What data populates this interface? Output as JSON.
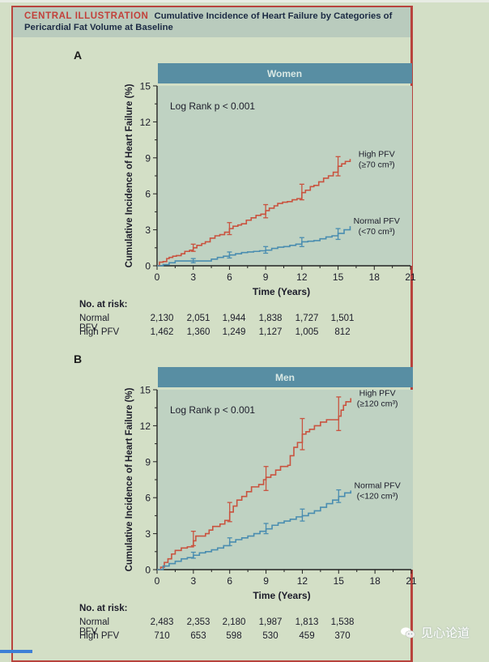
{
  "header": {
    "label": "CENTRAL ILLUSTRATION",
    "title": "Cumulative Incidence of Heart Failure by Categories of Pericardial Fat Volume at Baseline"
  },
  "colors": {
    "high_pfv": "#c9533f",
    "normal_pfv": "#4a8db0",
    "panel_header": "#588ea3",
    "plot_bg": "#bfd2c2",
    "frame": "#b8433d",
    "accent_label": "#c2403a"
  },
  "watermark": "见心论道",
  "chart_data": [
    {
      "panel": "A",
      "type": "line",
      "subtype": "kaplan-meier cumulative incidence",
      "title": "Women",
      "xlabel": "Time (Years)",
      "ylabel": "Cumulative Incidence of Heart Failure (%)",
      "xlim": [
        0,
        21
      ],
      "ylim": [
        0,
        15
      ],
      "xticks": [
        0,
        3,
        6,
        9,
        12,
        15,
        18,
        21
      ],
      "yticks": [
        0,
        3,
        6,
        9,
        12,
        15
      ],
      "annotation": "Log Rank p < 0.001",
      "series": [
        {
          "name": "High PFV",
          "label_line1": "High PFV",
          "label_line2": "(≥70 cm³)",
          "color": "#c9533f",
          "x": [
            0,
            0.2,
            0.5,
            0.8,
            1.0,
            1.3,
            1.6,
            2.0,
            2.3,
            2.7,
            3.0,
            3.3,
            3.7,
            4.0,
            4.4,
            4.8,
            5.2,
            5.6,
            6.0,
            6.3,
            6.7,
            7.0,
            7.4,
            7.8,
            8.2,
            8.6,
            9.0,
            9.3,
            9.7,
            10.0,
            10.4,
            10.8,
            11.2,
            11.6,
            12.0,
            12.3,
            12.7,
            13.0,
            13.4,
            13.8,
            14.2,
            14.6,
            15.0,
            15.3,
            15.6,
            16.0
          ],
          "y": [
            0,
            0.3,
            0.35,
            0.6,
            0.7,
            0.8,
            0.85,
            1.0,
            1.2,
            1.3,
            1.5,
            1.7,
            1.85,
            2.0,
            2.3,
            2.5,
            2.6,
            2.8,
            3.1,
            3.3,
            3.4,
            3.5,
            3.8,
            4.0,
            4.2,
            4.3,
            4.6,
            4.8,
            5.0,
            5.2,
            5.3,
            5.35,
            5.5,
            5.6,
            6.1,
            6.3,
            6.6,
            6.7,
            7.0,
            7.3,
            7.5,
            7.8,
            8.3,
            8.5,
            8.7,
            8.9
          ],
          "ci_at": [
            {
              "x": 3,
              "y": 1.5,
              "lo": 1.2,
              "hi": 1.8
            },
            {
              "x": 6,
              "y": 3.1,
              "lo": 2.6,
              "hi": 3.6
            },
            {
              "x": 9,
              "y": 4.6,
              "lo": 4.0,
              "hi": 5.1
            },
            {
              "x": 12,
              "y": 6.1,
              "lo": 5.5,
              "hi": 6.8
            },
            {
              "x": 15,
              "y": 8.3,
              "lo": 7.5,
              "hi": 9.1
            }
          ],
          "at_risk": [
            "1,462",
            "1,360",
            "1,249",
            "1,127",
            "1,005",
            "812"
          ]
        },
        {
          "name": "Normal PFV",
          "label_line1": "Normal PFV",
          "label_line2": "(<70 cm³)",
          "color": "#4a8db0",
          "x": [
            0,
            0.5,
            1.0,
            1.5,
            2.0,
            3.0,
            4.0,
            4.5,
            5.0,
            5.5,
            6.0,
            6.5,
            7.0,
            7.5,
            8.0,
            8.5,
            9.0,
            9.5,
            10.0,
            10.5,
            11.0,
            11.5,
            12.0,
            12.5,
            13.0,
            13.5,
            14.0,
            14.5,
            15.0,
            15.5,
            16.0
          ],
          "y": [
            0,
            0.1,
            0.25,
            0.4,
            0.4,
            0.4,
            0.4,
            0.55,
            0.7,
            0.8,
            0.9,
            1.0,
            1.1,
            1.15,
            1.2,
            1.25,
            1.3,
            1.45,
            1.55,
            1.6,
            1.7,
            1.8,
            2.0,
            2.05,
            2.1,
            2.25,
            2.4,
            2.5,
            2.7,
            3.0,
            3.3
          ],
          "ci_at": [
            {
              "x": 3,
              "y": 0.4,
              "lo": 0.25,
              "hi": 0.6
            },
            {
              "x": 6,
              "y": 0.9,
              "lo": 0.65,
              "hi": 1.15
            },
            {
              "x": 9,
              "y": 1.3,
              "lo": 1.05,
              "hi": 1.6
            },
            {
              "x": 12,
              "y": 2.0,
              "lo": 1.6,
              "hi": 2.35
            },
            {
              "x": 15,
              "y": 2.7,
              "lo": 2.2,
              "hi": 3.1
            }
          ],
          "at_risk": [
            "2,130",
            "2,051",
            "1,944",
            "1,838",
            "1,727",
            "1,501"
          ]
        }
      ],
      "risk_table": {
        "header": "No. at risk:",
        "times": [
          0,
          3,
          6,
          9,
          12,
          15
        ]
      }
    },
    {
      "panel": "B",
      "type": "line",
      "subtype": "kaplan-meier cumulative incidence",
      "title": "Men",
      "xlabel": "Time (Years)",
      "ylabel": "Cumulative Incidence of Heart Failure (%)",
      "xlim": [
        0,
        21
      ],
      "ylim": [
        0,
        15
      ],
      "xticks": [
        0,
        3,
        6,
        9,
        12,
        15,
        18,
        21
      ],
      "yticks": [
        0,
        3,
        6,
        9,
        12,
        15
      ],
      "annotation": "Log Rank p < 0.001",
      "series": [
        {
          "name": "High PFV",
          "label_line1": "High PFV",
          "label_line2": "(≥120 cm³)",
          "color": "#c9533f",
          "x": [
            0,
            0.3,
            0.6,
            0.9,
            1.2,
            1.5,
            2.0,
            2.5,
            3.0,
            3.2,
            4.0,
            4.3,
            4.6,
            5.2,
            5.6,
            6.0,
            6.3,
            6.6,
            7.0,
            7.4,
            7.8,
            8.4,
            8.8,
            9.0,
            9.4,
            9.8,
            10.2,
            10.8,
            11.0,
            11.3,
            11.6,
            12.0,
            12.3,
            12.6,
            13.0,
            13.5,
            14.0,
            14.5,
            15.0,
            15.2,
            15.4,
            15.6,
            16.0
          ],
          "y": [
            0,
            0.2,
            0.6,
            0.9,
            1.3,
            1.6,
            1.8,
            1.9,
            2.4,
            2.8,
            3.0,
            3.3,
            3.6,
            3.8,
            4.1,
            4.8,
            5.3,
            5.8,
            6.1,
            6.5,
            6.9,
            7.1,
            7.5,
            7.7,
            7.9,
            8.3,
            8.6,
            8.7,
            9.5,
            10.2,
            10.6,
            11.3,
            11.5,
            11.7,
            12.0,
            12.3,
            12.5,
            12.5,
            12.8,
            13.3,
            13.7,
            14.0,
            14.3
          ],
          "ci_at": [
            {
              "x": 3,
              "y": 2.4,
              "lo": 2.0,
              "hi": 3.2
            },
            {
              "x": 6,
              "y": 4.8,
              "lo": 4.0,
              "hi": 5.6
            },
            {
              "x": 9,
              "y": 7.7,
              "lo": 6.6,
              "hi": 8.6
            },
            {
              "x": 12,
              "y": 11.3,
              "lo": 10.0,
              "hi": 12.6
            },
            {
              "x": 15,
              "y": 12.8,
              "lo": 11.6,
              "hi": 14.4
            }
          ],
          "at_risk": [
            "710",
            "653",
            "598",
            "530",
            "459",
            "370"
          ]
        },
        {
          "name": "Normal PFV",
          "label_line1": "Normal PFV",
          "label_line2": "(<120 cm³)",
          "color": "#4a8db0",
          "x": [
            0,
            0.5,
            1.0,
            1.5,
            2.0,
            2.5,
            3.0,
            3.5,
            4.0,
            4.5,
            5.0,
            5.5,
            6.0,
            6.5,
            7.0,
            7.5,
            8.0,
            8.5,
            9.0,
            9.5,
            10.0,
            10.5,
            11.0,
            11.5,
            12.0,
            12.5,
            13.0,
            13.5,
            14.0,
            14.5,
            15.0,
            15.5,
            16.0
          ],
          "y": [
            0,
            0.3,
            0.5,
            0.7,
            0.9,
            1.0,
            1.2,
            1.4,
            1.5,
            1.65,
            1.8,
            2.0,
            2.3,
            2.5,
            2.65,
            2.8,
            3.0,
            3.2,
            3.4,
            3.7,
            3.9,
            4.05,
            4.2,
            4.4,
            4.5,
            4.7,
            4.9,
            5.2,
            5.5,
            5.8,
            6.1,
            6.4,
            6.6
          ],
          "ci_at": [
            {
              "x": 3,
              "y": 1.2,
              "lo": 0.95,
              "hi": 1.45
            },
            {
              "x": 6,
              "y": 2.3,
              "lo": 2.0,
              "hi": 2.65
            },
            {
              "x": 9,
              "y": 3.4,
              "lo": 3.0,
              "hi": 3.85
            },
            {
              "x": 12,
              "y": 4.5,
              "lo": 4.05,
              "hi": 5.05
            },
            {
              "x": 15,
              "y": 6.1,
              "lo": 5.6,
              "hi": 6.65
            }
          ],
          "at_risk": [
            "2,483",
            "2,353",
            "2,180",
            "1,987",
            "1,813",
            "1,538"
          ]
        }
      ],
      "risk_table": {
        "header": "No. at risk:",
        "times": [
          0,
          3,
          6,
          9,
          12,
          15
        ]
      }
    }
  ]
}
